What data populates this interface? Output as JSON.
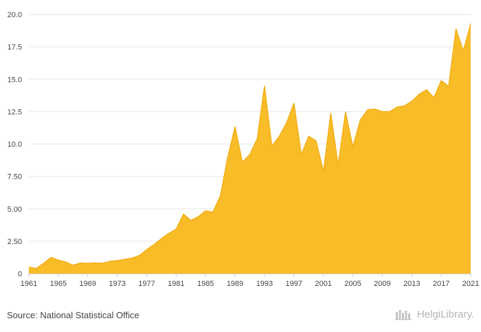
{
  "chart_data": {
    "type": "area",
    "title": "",
    "xlabel": "",
    "ylabel": "",
    "x": [
      1961,
      1962,
      1963,
      1964,
      1965,
      1966,
      1967,
      1968,
      1969,
      1970,
      1971,
      1972,
      1973,
      1974,
      1975,
      1976,
      1977,
      1978,
      1979,
      1980,
      1981,
      1982,
      1983,
      1984,
      1985,
      1986,
      1987,
      1988,
      1989,
      1990,
      1991,
      1992,
      1993,
      1994,
      1995,
      1996,
      1997,
      1998,
      1999,
      2000,
      2001,
      2002,
      2003,
      2004,
      2005,
      2006,
      2007,
      2008,
      2009,
      2010,
      2011,
      2012,
      2013,
      2014,
      2015,
      2016,
      2017,
      2018,
      2019,
      2020,
      2021
    ],
    "values": [
      0.5,
      0.4,
      0.8,
      1.25,
      1.05,
      0.9,
      0.65,
      0.82,
      0.8,
      0.83,
      0.8,
      0.95,
      1.0,
      1.1,
      1.2,
      1.4,
      1.85,
      2.25,
      2.7,
      3.1,
      3.45,
      4.6,
      4.1,
      4.4,
      4.85,
      4.75,
      6.0,
      9.0,
      11.35,
      8.6,
      9.2,
      10.4,
      14.5,
      9.85,
      10.6,
      11.65,
      13.15,
      9.2,
      10.6,
      10.25,
      7.9,
      12.4,
      8.4,
      12.5,
      9.8,
      11.85,
      12.65,
      12.7,
      12.5,
      12.5,
      12.85,
      12.95,
      13.3,
      13.85,
      14.2,
      13.6,
      14.9,
      14.45,
      18.9,
      17.2,
      19.3
    ],
    "ylim": [
      0,
      20
    ],
    "yticks": [
      "0",
      "2.50",
      "5.00",
      "7.50",
      "10.0",
      "12.5",
      "15.0",
      "17.5",
      "20.0"
    ],
    "xticks": [
      "1961",
      "1965",
      "1969",
      "1973",
      "1977",
      "1981",
      "1985",
      "1989",
      "1993",
      "1997",
      "2001",
      "2005",
      "2009",
      "2013",
      "2017",
      "2021"
    ],
    "fill_color": "#f9bc29",
    "line_color": "#f0ac0f",
    "grid_color": "#e6e6e6"
  },
  "footer": {
    "source": "Source: National Statistical Office",
    "brand": "HelgiLibrary.",
    "brand_icon": "library-icon"
  }
}
